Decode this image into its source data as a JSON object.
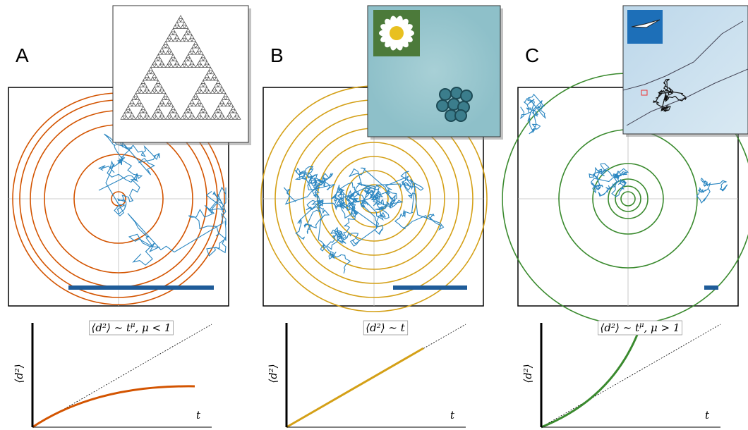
{
  "panels": [
    {
      "label": "A",
      "formula": {
        "main": "⟨d²⟩ ∼ t",
        "sup": "μ",
        "rest": ", μ < 1"
      },
      "ylabel": "⟨d²⟩",
      "xlabel": "t"
    },
    {
      "label": "B",
      "formula": {
        "main": "⟨d²⟩ ∼ t",
        "sup": "",
        "rest": ""
      },
      "ylabel": "⟨d²⟩",
      "xlabel": "t"
    },
    {
      "label": "C",
      "formula": {
        "main": "⟨d²⟩ ∼ t",
        "sup": "μ",
        "rest": ", μ > 1"
      },
      "ylabel": "⟨d²⟩",
      "xlabel": "t"
    }
  ]
}
